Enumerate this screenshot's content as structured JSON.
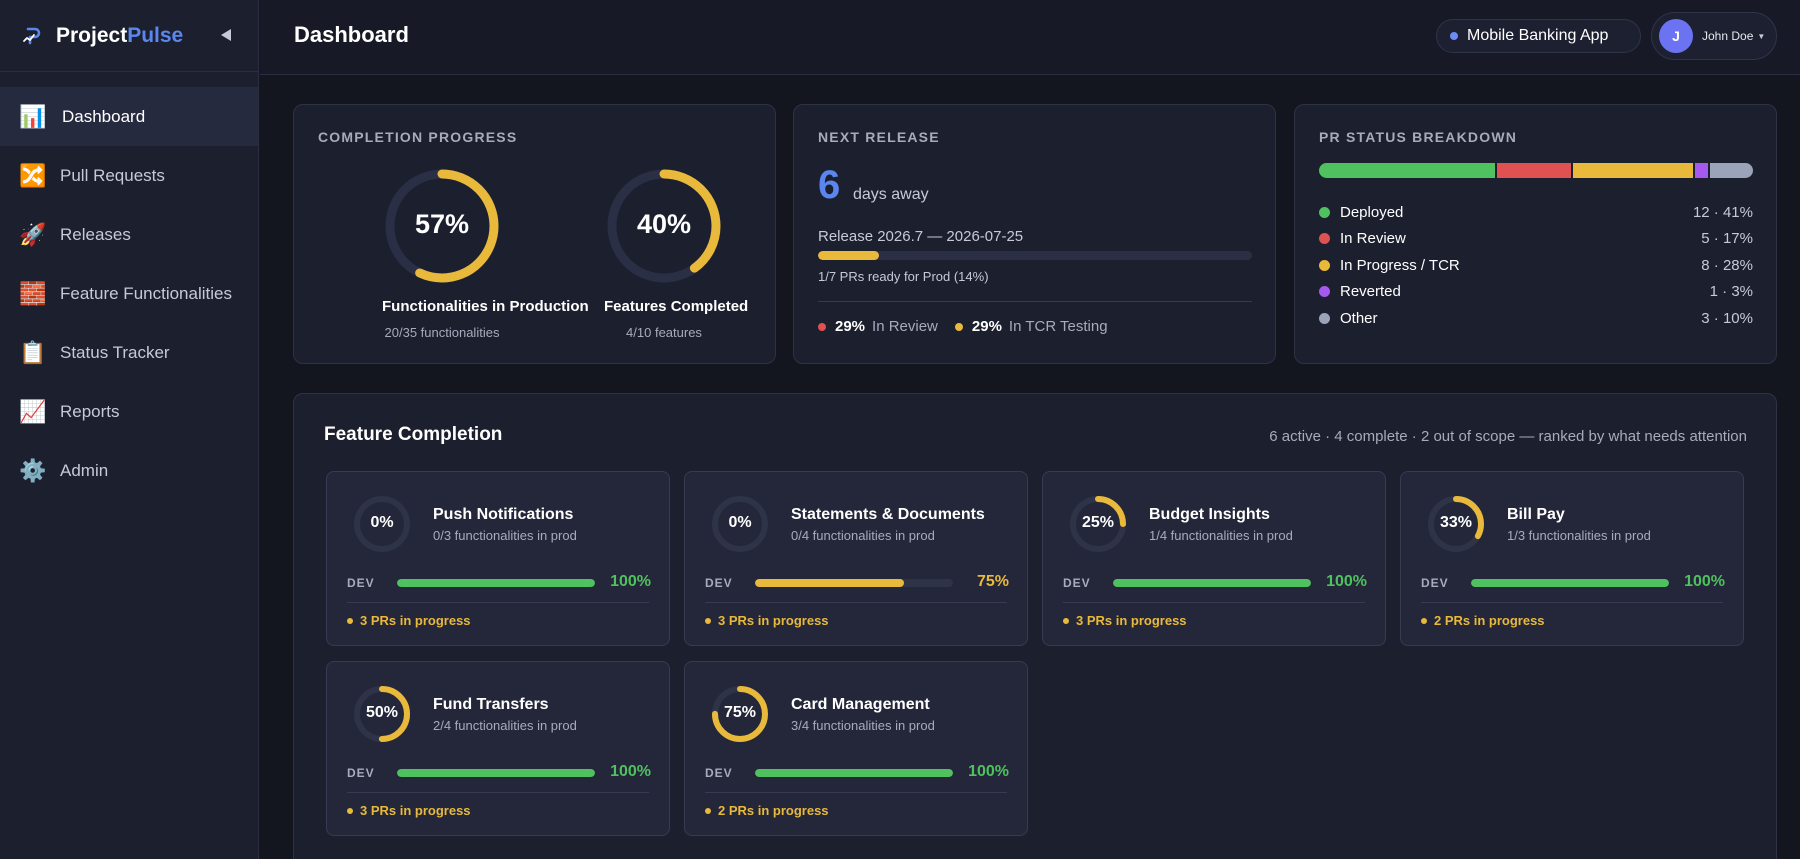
{
  "app": {
    "brand_main": "Project",
    "brand_accent": "Pulse"
  },
  "sidebar": {
    "items": [
      {
        "label": "Dashboard",
        "icon": "📊",
        "icon_name": "bar-chart-icon",
        "active": true
      },
      {
        "label": "Pull Requests",
        "icon": "🔀",
        "icon_name": "shuffle-icon",
        "active": false
      },
      {
        "label": "Releases",
        "icon": "🚀",
        "icon_name": "rocket-icon",
        "active": false
      },
      {
        "label": "Feature Functionalities",
        "icon": "🧱",
        "icon_name": "bricks-icon",
        "active": false
      },
      {
        "label": "Status Tracker",
        "icon": "📋",
        "icon_name": "clipboard-icon",
        "active": false
      },
      {
        "label": "Reports",
        "icon": "📈",
        "icon_name": "trend-chart-icon",
        "active": false
      },
      {
        "label": "Admin",
        "icon": "⚙️",
        "icon_name": "gear-icon",
        "active": false
      }
    ]
  },
  "topbar": {
    "title": "Dashboard",
    "project": "Mobile Banking App",
    "user_initial": "J",
    "user_name": "John Doe"
  },
  "completion": {
    "label": "COMPLETION PROGRESS",
    "rings": [
      {
        "pct_label": "57%",
        "value": 0.57,
        "title": "Functionalities in Production",
        "sub": "20/35 functionalities"
      },
      {
        "pct_label": "40%",
        "value": 0.4,
        "title": "Features Completed",
        "sub": "4/10 features"
      }
    ]
  },
  "release": {
    "label": "NEXT RELEASE",
    "days": "6",
    "days_text": "days away",
    "release_line": "Release 2026.7 — 2026-07-25",
    "progress": 0.14,
    "caption": "1/7 PRs ready for Prod (14%)",
    "stats": [
      {
        "value": "29%",
        "label": "In Review",
        "color": "#e05252"
      },
      {
        "value": "29%",
        "label": "In TCR Testing",
        "color": "#e9b93b"
      }
    ]
  },
  "pr_status": {
    "label": "PR STATUS BREAKDOWN",
    "items": [
      {
        "label": "Deployed",
        "value": "12 · 41%",
        "share": 41,
        "color": "#4fc15e"
      },
      {
        "label": "In Review",
        "value": "5 · 17%",
        "share": 17,
        "color": "#e05252"
      },
      {
        "label": "In Progress / TCR",
        "value": "8 · 28%",
        "share": 28,
        "color": "#e9b93b"
      },
      {
        "label": "Reverted",
        "value": "1 · 3%",
        "share": 3,
        "color": "#a659ee"
      },
      {
        "label": "Other",
        "value": "3 · 10%",
        "share": 10,
        "color": "#9aa3b8"
      }
    ]
  },
  "features": {
    "title": "Feature Completion",
    "meta": "6 active · 4 complete · 2 out of scope — ranked by what needs attention",
    "dev_label": "DEV",
    "items": [
      {
        "name": "Push Notifications",
        "pct_label": "0%",
        "value": 0,
        "sub": "0/3 functionalities in prod",
        "dev_pct_label": "100%",
        "dev": 1.0,
        "prs": "3 PRs in progress"
      },
      {
        "name": "Statements & Documents",
        "pct_label": "0%",
        "value": 0,
        "sub": "0/4 functionalities in prod",
        "dev_pct_label": "75%",
        "dev": 0.75,
        "prs": "3 PRs in progress"
      },
      {
        "name": "Budget Insights",
        "pct_label": "25%",
        "value": 0.25,
        "sub": "1/4 functionalities in prod",
        "dev_pct_label": "100%",
        "dev": 1.0,
        "prs": "3 PRs in progress"
      },
      {
        "name": "Bill Pay",
        "pct_label": "33%",
        "value": 0.33,
        "sub": "1/3 functionalities in prod",
        "dev_pct_label": "100%",
        "dev": 1.0,
        "prs": "2 PRs in progress"
      },
      {
        "name": "Fund Transfers",
        "pct_label": "50%",
        "value": 0.5,
        "sub": "2/4 functionalities in prod",
        "dev_pct_label": "100%",
        "dev": 1.0,
        "prs": "3 PRs in progress"
      },
      {
        "name": "Card Management",
        "pct_label": "75%",
        "value": 0.75,
        "sub": "3/4 functionalities in prod",
        "dev_pct_label": "100%",
        "dev": 1.0,
        "prs": "2 PRs in progress"
      }
    ]
  },
  "colors": {
    "accent": "#5b86f0",
    "ring": "#e9b93b",
    "ring_track": "#2a2f45",
    "dev_full": "#4fc15e",
    "dev_partial": "#e9b93b"
  }
}
